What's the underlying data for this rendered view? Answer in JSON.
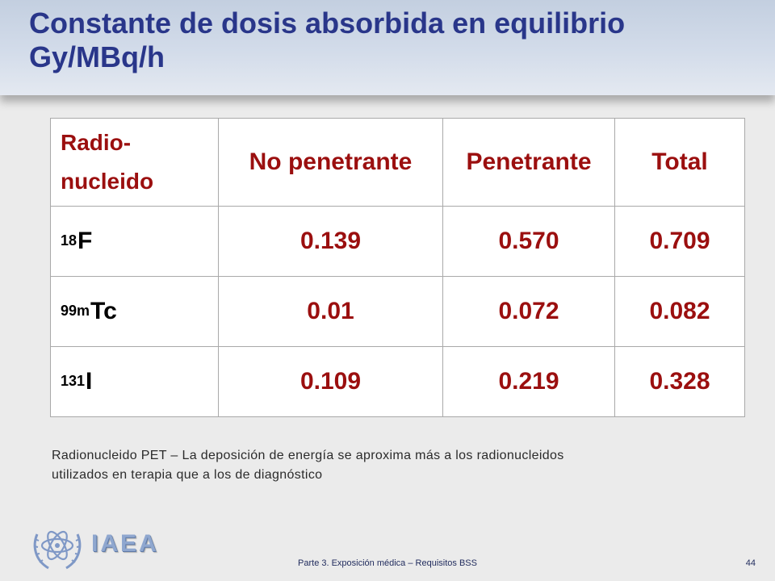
{
  "slide": {
    "title_line1": "Constante de dosis absorbida en equilibrio",
    "title_line2": "Gy/MBq/h"
  },
  "table": {
    "headers": {
      "radio_line1": "Radio-",
      "radio_line2": "nucleido",
      "no_penetrante": "No penetrante",
      "penetrante": "Penetrante",
      "total": "Total"
    },
    "rows": [
      {
        "mass": "18",
        "symbol": "F",
        "no_penetrante": "0.139",
        "penetrante": "0.570",
        "total": "0.709"
      },
      {
        "mass": "99m",
        "symbol": "Tc",
        "no_penetrante": "0.01",
        "penetrante": "0.072",
        "total": "0.082"
      },
      {
        "mass": "131",
        "symbol": "I",
        "no_penetrante": "0.109",
        "penetrante": "0.219",
        "total": "0.328"
      }
    ]
  },
  "note": {
    "line1": "Radionucleido PET – La deposición de energía se aproxima más a los radionucleidos",
    "line2": "utilizados en terapia que a los de diagnóstico"
  },
  "footer": {
    "logo_text": "IAEA",
    "center_text": "Parte 3. Exposición médica – Requisitos BSS",
    "page_number": "44"
  },
  "colors": {
    "title": "#29368a",
    "table_text": "#9b0f0f",
    "background": "#ebebeb"
  },
  "icons": {
    "logo": "iaea-logo-icon"
  }
}
